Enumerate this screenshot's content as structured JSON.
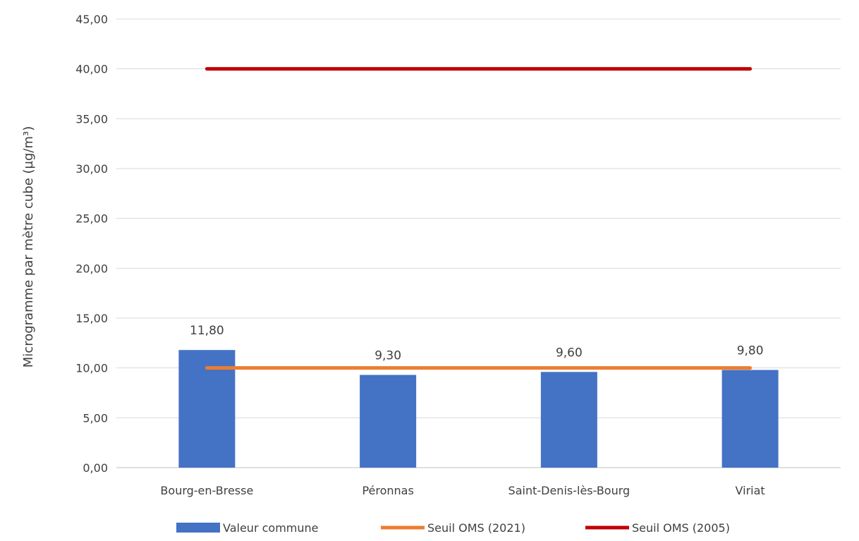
{
  "chart_data": {
    "type": "bar",
    "categories": [
      "Bourg-en-Bresse",
      "Péronnas",
      "Saint-Denis-lès-Bourg",
      "Viriat"
    ],
    "ylabel": "Microgramme par mètre cube (µg/m³)",
    "ylim": [
      0,
      45
    ],
    "y_ticks": [
      "0,00",
      "5,00",
      "10,00",
      "15,00",
      "20,00",
      "25,00",
      "30,00",
      "35,00",
      "40,00",
      "45,00"
    ],
    "grid": true,
    "legend_position": "bottom",
    "series": [
      {
        "name": "Valeur commune",
        "type": "bar",
        "color": "#4472C4",
        "values": [
          11.8,
          9.3,
          9.6,
          9.8
        ],
        "labels": [
          "11,80",
          "9,30",
          "9,60",
          "9,80"
        ]
      },
      {
        "name": "Seuil OMS (2021)",
        "type": "line",
        "color": "#ED7D31",
        "values": [
          10,
          10,
          10,
          10
        ]
      },
      {
        "name": "Seuil OMS (2005)",
        "type": "line",
        "color": "#C00000",
        "values": [
          40,
          40,
          40,
          40
        ]
      }
    ]
  }
}
